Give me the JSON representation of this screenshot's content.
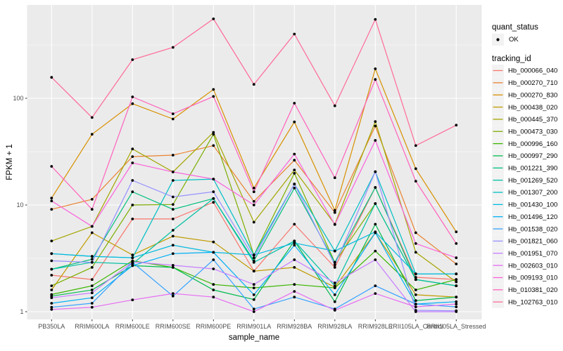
{
  "chart_data": {
    "type": "line",
    "title": "",
    "xlabel": "sample_name",
    "ylabel": "FPKM + 1",
    "yscale": "log10",
    "yticks": [
      1,
      10,
      100
    ],
    "y_minor_ticks": [
      3.162,
      31.62,
      316.2
    ],
    "ylim": [
      0.85,
      740
    ],
    "grid": "on",
    "legend_position": "right",
    "panel_bg": "#EBEBEB",
    "grid_color": "#FFFFFF",
    "point_color": "#000000",
    "tick_label_color": "#4D4D4D",
    "legend_key_bg": "#F2F2F2",
    "categories": [
      "PB350LA",
      "RRIM600LA",
      "RRIM600LE",
      "RRIM600SE",
      "RRIM600PE",
      "RRIM901LA",
      "RRIM928BA",
      "RRIM928LA",
      "RRIM928LE",
      "RRII105LA_Control",
      "RRII105LA_Stressed"
    ],
    "legend": {
      "quant_status_title": "quant_status",
      "ok_label": "OK",
      "tracking_title": "tracking_id"
    },
    "series": [
      {
        "name": "Hb_000066_040",
        "color": "#F8766D",
        "values": [
          2.2,
          2.0,
          7.4,
          7.4,
          10.6,
          2.4,
          6.6,
          2.6,
          14.6,
          2.1,
          2.0
        ]
      },
      {
        "name": "Hb_000270_710",
        "color": "#EA8331",
        "values": [
          9.1,
          11.3,
          28.4,
          29.3,
          36,
          10.8,
          26.3,
          8.5,
          55,
          5.5,
          2.8
        ]
      },
      {
        "name": "Hb_000270_830",
        "color": "#D89000",
        "values": [
          11.6,
          46,
          89,
          64,
          121,
          14.4,
          60,
          8.9,
          189,
          21.9,
          5.6
        ]
      },
      {
        "name": "Hb_000438_020",
        "color": "#C09B00",
        "values": [
          1.6,
          5.5,
          3.4,
          5.1,
          4.5,
          2.4,
          2.6,
          1.7,
          5.5,
          1.44,
          1.37
        ]
      },
      {
        "name": "Hb_000445_370",
        "color": "#A3A500",
        "values": [
          4.6,
          6.3,
          33.5,
          20.4,
          48,
          6.9,
          21.3,
          6.6,
          60.6,
          3.6,
          1.9
        ]
      },
      {
        "name": "Hb_000473_030",
        "color": "#7CAE00",
        "values": [
          1.75,
          2.6,
          10.0,
          10.1,
          46,
          3.4,
          19.8,
          2.9,
          10.3,
          2.0,
          1.75
        ]
      },
      {
        "name": "Hb_000996_160",
        "color": "#39B600",
        "values": [
          1.45,
          1.75,
          3.0,
          2.6,
          1.8,
          1.67,
          1.8,
          1.67,
          3.7,
          1.6,
          2.0
        ]
      },
      {
        "name": "Hb_000997_290",
        "color": "#00BB4E",
        "values": [
          1.4,
          1.6,
          2.7,
          2.6,
          1.6,
          1.3,
          4.6,
          1.24,
          6.6,
          1.27,
          1.37
        ]
      },
      {
        "name": "Hb_001221_390",
        "color": "#00BF7D",
        "values": [
          2.5,
          3.1,
          13.3,
          9.1,
          11.5,
          3.0,
          14.4,
          2.9,
          14.6,
          2.0,
          1.75
        ]
      },
      {
        "name": "Hb_001269_520",
        "color": "#00C1A3",
        "values": [
          2.5,
          2.9,
          2.8,
          5.8,
          11.5,
          2.9,
          4.6,
          1.75,
          10.3,
          2.0,
          1.75
        ]
      },
      {
        "name": "Hb_001307_200",
        "color": "#00BFC4",
        "values": [
          3.5,
          3.3,
          3.2,
          17.0,
          17.5,
          3.4,
          15.7,
          3.7,
          20.5,
          2.26,
          2.26
        ]
      },
      {
        "name": "Hb_001430_100",
        "color": "#00BAE0",
        "values": [
          3.5,
          3.3,
          3.2,
          4.2,
          3.6,
          3.4,
          4.4,
          3.7,
          5.6,
          2.26,
          2.26
        ]
      },
      {
        "name": "Hb_001496_120",
        "color": "#00B0F6",
        "values": [
          1.2,
          1.35,
          2.7,
          3.5,
          3.6,
          1.44,
          4.2,
          1.44,
          5.5,
          1.18,
          1.24
        ]
      },
      {
        "name": "Hb_001538_020",
        "color": "#35A2FF",
        "values": [
          1.1,
          1.2,
          2.9,
          1.4,
          3.07,
          1.06,
          1.37,
          1.06,
          1.75,
          1.18,
          1.11
        ]
      },
      {
        "name": "Hb_001821_060",
        "color": "#9590FF",
        "values": [
          3.0,
          2.9,
          17.0,
          11.9,
          13.3,
          3.2,
          15.7,
          2.75,
          20.5,
          1.03,
          1.02
        ]
      },
      {
        "name": "Hb_001951_070",
        "color": "#C77CFF",
        "values": [
          1.35,
          1.5,
          2.93,
          2.72,
          2.52,
          1.8,
          3.07,
          1.86,
          3.07,
          1.0,
          1.0
        ]
      },
      {
        "name": "Hb_002603_010",
        "color": "#E76BF3",
        "values": [
          1.05,
          1.1,
          1.29,
          1.48,
          1.37,
          1.0,
          1.55,
          1.03,
          1.48,
          1.11,
          1.18
        ]
      },
      {
        "name": "Hb_009193_010",
        "color": "#FA62DB",
        "values": [
          10.9,
          6.3,
          24.8,
          20.4,
          17.5,
          10.0,
          30,
          6.55,
          40.3,
          4.35,
          3.2
        ]
      },
      {
        "name": "Hb_010381_020",
        "color": "#FF62BC",
        "values": [
          23,
          9.1,
          103,
          71.6,
          104,
          13.3,
          90,
          18,
          150,
          16.7,
          4.35
        ]
      },
      {
        "name": "Hb_102763_010",
        "color": "#FF6A98",
        "values": [
          157,
          66,
          230,
          300,
          555,
          135,
          400,
          85,
          549,
          36,
          56
        ]
      }
    ]
  }
}
